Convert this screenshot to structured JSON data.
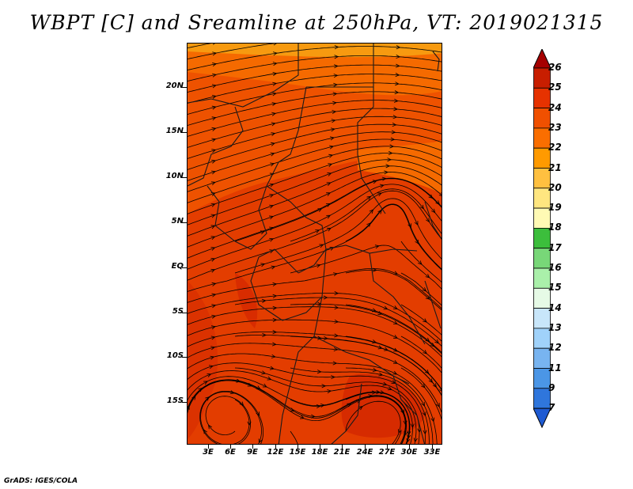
{
  "title": "WBPT [C] and Sreamline at 250hPa, VT: 2019021315",
  "footer": "GrADS: IGES/COLA",
  "lat_labels": [
    "20N",
    "15N",
    "10N",
    "5N",
    "EQ",
    "5S",
    "10S",
    "15S"
  ],
  "lon_labels": [
    "3E",
    "6E",
    "9E",
    "12E",
    "15E",
    "18E",
    "21E",
    "24E",
    "27E",
    "30E",
    "33E"
  ],
  "colorbar": {
    "labels": [
      "26",
      "25",
      "24",
      "23",
      "22",
      "21",
      "20",
      "19",
      "18",
      "17",
      "16",
      "15",
      "14",
      "13",
      "12",
      "11",
      "9",
      "7"
    ],
    "colors": [
      "#a50000",
      "#c81e00",
      "#e63200",
      "#f05000",
      "#fa6e00",
      "#ff9a00",
      "#ffc040",
      "#ffe680",
      "#fffab4",
      "#3cbe3c",
      "#78d778",
      "#aaf0aa",
      "#e6fae6",
      "#c8e6fa",
      "#a0d2fa",
      "#78b4f0",
      "#4b96e6",
      "#2f76dc",
      "#1e5ad2"
    ]
  },
  "map_colors": {
    "dark": "#d42800",
    "mid": "#e33d00",
    "light": "#ee5200",
    "orange": "#f56a00",
    "top": "#f79a10"
  }
}
